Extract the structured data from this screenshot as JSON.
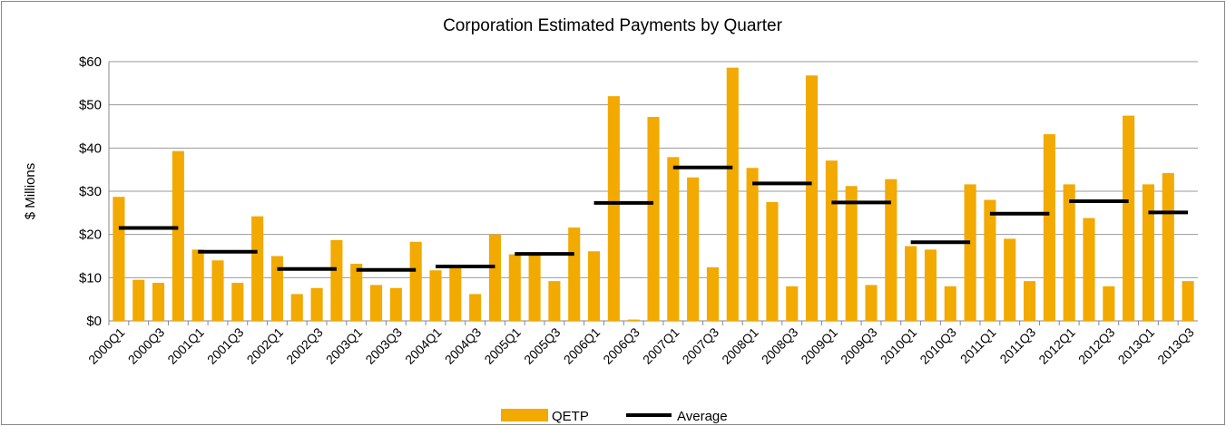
{
  "chart_data": {
    "type": "bar",
    "title": "Corporation  Estimated Payments by Quarter",
    "y_label": "$ Millions",
    "categories": [
      "2000Q1",
      null,
      "2000Q3",
      null,
      "2001Q1",
      null,
      "2001Q3",
      null,
      "2002Q1",
      null,
      "2002Q3",
      null,
      "2003Q1",
      null,
      "2003Q3",
      null,
      "2004Q1",
      null,
      "2004Q3",
      null,
      "2005Q1",
      null,
      "2005Q3",
      null,
      "2006Q1",
      null,
      "2006Q3",
      null,
      "2007Q1",
      null,
      "2007Q3",
      null,
      "2008Q1",
      null,
      "2008Q3",
      null,
      "2009Q1",
      null,
      "2009Q3",
      null,
      "2010Q1",
      null,
      "2010Q3",
      null,
      "2011Q1",
      null,
      "2011Q3",
      null,
      "2012Q1",
      null,
      "2012Q3",
      null,
      "2013Q1",
      null,
      "2013Q3"
    ],
    "series": [
      {
        "name": "QETP",
        "color": "#f2a900",
        "values": [
          28.7,
          9.5,
          8.8,
          39.3,
          16.5,
          14,
          8.8,
          24.2,
          15,
          6.2,
          7.6,
          18.7,
          13.2,
          8.3,
          7.6,
          18.3,
          11.7,
          12.4,
          6.2,
          20,
          15.4,
          15.2,
          9.2,
          21.6,
          16.1,
          52,
          0.3,
          47.2,
          37.9,
          33.2,
          12.4,
          58.6,
          35.4,
          27.5,
          8,
          56.8,
          37.1,
          31.2,
          8.3,
          32.8,
          17.3,
          16.5,
          8,
          31.6,
          28,
          19,
          9.2,
          43.2,
          31.6,
          23.8,
          8,
          47.5,
          31.6,
          34.2,
          9.2
        ]
      },
      {
        "name": "Average",
        "color": "#000000",
        "type": "line",
        "values": [
          21.5,
          21.5,
          21.5,
          21.5,
          16,
          16,
          16,
          16,
          12,
          12,
          12,
          12,
          11.8,
          11.8,
          11.8,
          11.8,
          12.6,
          12.6,
          12.6,
          12.6,
          15.5,
          15.5,
          15.5,
          15.5,
          27.3,
          27.3,
          27.3,
          27.3,
          35.5,
          35.5,
          35.5,
          35.5,
          31.8,
          31.8,
          31.8,
          31.8,
          27.4,
          27.4,
          27.4,
          27.4,
          18.2,
          18.2,
          18.2,
          18.2,
          24.8,
          24.8,
          24.8,
          24.8,
          27.7,
          27.7,
          27.7,
          27.7,
          25.1,
          25.1,
          25.1
        ]
      }
    ],
    "ylim": [
      0,
      60
    ],
    "yticks": [
      {
        "value": 0,
        "label": "$0"
      },
      {
        "value": 10,
        "label": "$10"
      },
      {
        "value": 20,
        "label": "$20"
      },
      {
        "value": 30,
        "label": "$30"
      },
      {
        "value": 40,
        "label": "$40"
      },
      {
        "value": 50,
        "label": "$50"
      },
      {
        "value": 60,
        "label": "$60"
      }
    ],
    "grid": true,
    "legend": "bottom"
  }
}
